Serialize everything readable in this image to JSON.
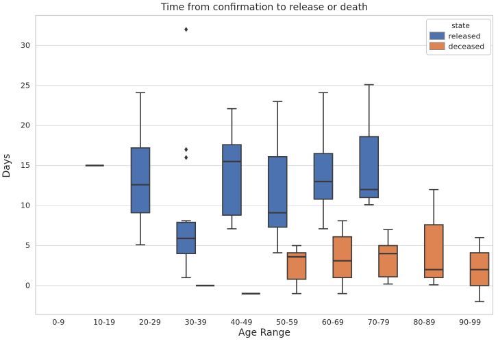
{
  "chart_data": {
    "type": "boxplot",
    "title": "Time from confirmation to release or death",
    "xlabel": "Age Range",
    "ylabel": "Days",
    "categories": [
      "0-9",
      "10-19",
      "20-29",
      "30-39",
      "40-49",
      "50-59",
      "60-69",
      "70-79",
      "80-89",
      "90-99"
    ],
    "yticks": [
      0,
      5,
      10,
      15,
      20,
      25,
      30
    ],
    "ylim": [
      -3.6,
      33.75
    ],
    "grid": true,
    "legend": {
      "title": "state",
      "position": "upper right"
    },
    "colors": {
      "released": "#4c72b0",
      "deceased": "#dd8452",
      "line": "#3a3a3a",
      "gridline": "#dcdcdc",
      "spine": "#cccccc",
      "text": "#262626"
    },
    "series": [
      {
        "name": "released",
        "color": "#4c72b0",
        "boxes": [
          null,
          {
            "flat": 15
          },
          {
            "whislo": 5.1,
            "q1": 9.1,
            "med": 12.6,
            "q3": 17.2,
            "whishi": 24.1
          },
          {
            "whislo": 1.0,
            "q1": 4.0,
            "med": 5.9,
            "q3": 7.9,
            "whishi": 8.1,
            "outliers": [
              16,
              17,
              32
            ]
          },
          {
            "whislo": 7.1,
            "q1": 8.8,
            "med": 15.5,
            "q3": 17.6,
            "whishi": 22.1
          },
          {
            "whislo": 4.1,
            "q1": 7.3,
            "med": 9.1,
            "q3": 16.1,
            "whishi": 23.0
          },
          {
            "whislo": 7.1,
            "q1": 10.8,
            "med": 13.0,
            "q3": 16.5,
            "whishi": 24.1
          },
          {
            "whislo": 10.1,
            "q1": 11.0,
            "med": 12.0,
            "q3": 18.6,
            "whishi": 25.1
          },
          null,
          null
        ]
      },
      {
        "name": "deceased",
        "color": "#dd8452",
        "boxes": [
          null,
          null,
          null,
          {
            "flat": 0
          },
          {
            "flat": -1
          },
          {
            "whislo": -1.0,
            "q1": 0.8,
            "med": 3.6,
            "q3": 4.1,
            "whishi": 5.0
          },
          {
            "whislo": -1.0,
            "q1": 1.0,
            "med": 3.1,
            "q3": 6.1,
            "whishi": 8.1
          },
          {
            "whislo": 0.2,
            "q1": 1.1,
            "med": 4.0,
            "q3": 5.0,
            "whishi": 7.0
          },
          {
            "whislo": 0.1,
            "q1": 1.0,
            "med": 2.0,
            "q3": 7.6,
            "whishi": 12.0
          },
          {
            "whislo": -2.0,
            "q1": 0.0,
            "med": 2.0,
            "q3": 4.1,
            "whishi": 6.0
          }
        ]
      }
    ]
  }
}
